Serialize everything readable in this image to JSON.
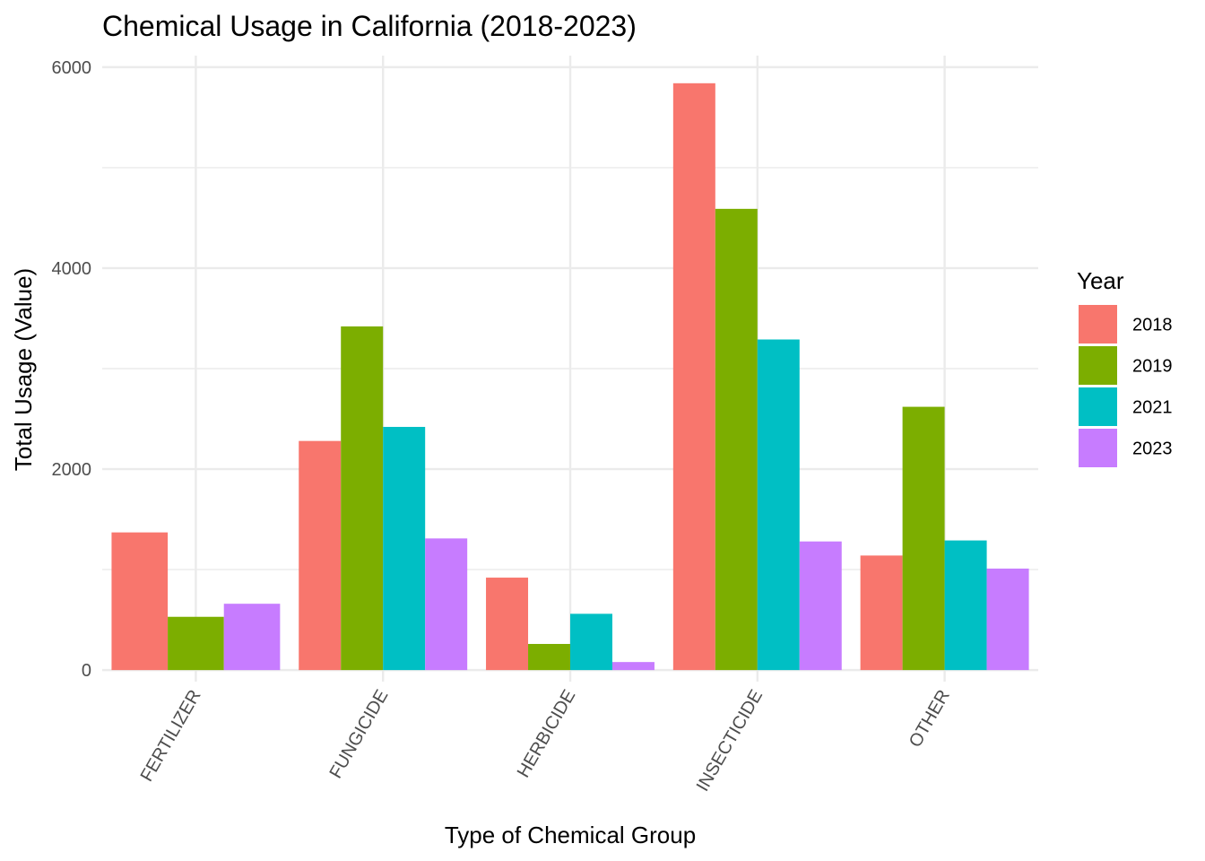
{
  "chart_data": {
    "type": "bar",
    "title": "Chemical Usage in California (2018-2023)",
    "xlabel": "Type of Chemical Group",
    "ylabel": "Total Usage (Value)",
    "categories": [
      "FERTILIZER",
      "FUNGICIDE",
      "HERBICIDE",
      "INSECTICIDE",
      "OTHER"
    ],
    "legend": {
      "title": "Year",
      "placement": "right"
    },
    "series": [
      {
        "name": "2018",
        "color": "#F8766D",
        "values": [
          1370,
          2280,
          920,
          5840,
          1140
        ]
      },
      {
        "name": "2019",
        "color": "#7CAE00",
        "values": [
          530,
          3420,
          260,
          4590,
          2620
        ]
      },
      {
        "name": "2021",
        "color": "#00BFC4",
        "values": [
          null,
          2420,
          560,
          3290,
          1290
        ]
      },
      {
        "name": "2023",
        "color": "#C77CFF",
        "values": [
          660,
          1310,
          80,
          1280,
          1010
        ]
      }
    ],
    "ylim": [
      -115,
      6115
    ],
    "yticks": [
      0,
      2000,
      4000,
      6000
    ],
    "ytick_labels": [
      "0",
      "2000",
      "4000",
      "6000"
    ],
    "grid": true
  }
}
